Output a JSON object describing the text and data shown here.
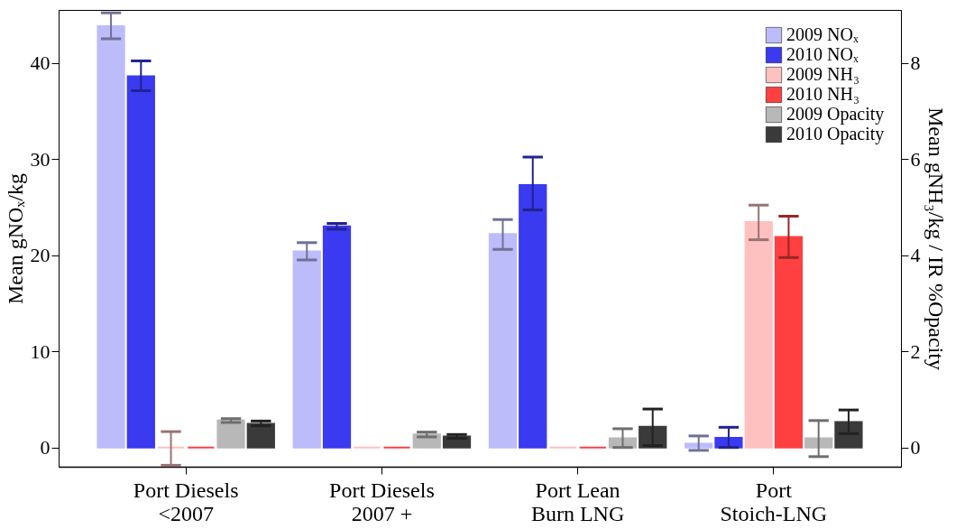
{
  "chart_data": {
    "type": "bar",
    "ylabel": "Mean gNOₓ/kg",
    "y2label": "Mean gNH₃/kg / IR %Opacity",
    "categories": [
      "Port Diesels\n<2007",
      "Port Diesels\n2007 +",
      "Port Lean\nBurn LNG",
      "Port\nStoich-LNG"
    ],
    "series": [
      {
        "name": "2009 NOₓ",
        "color": "#bcbcfb",
        "values": [
          43.8,
          20.4,
          22.2,
          0.4
        ],
        "errors": [
          [
            42.5,
            45.2
          ],
          [
            19.5,
            21.3
          ],
          [
            20.6,
            23.7
          ],
          [
            -0.3,
            1.2
          ]
        ]
      },
      {
        "name": "2010 NOₓ",
        "color": "#3a3af0",
        "values": [
          38.6,
          23.0,
          27.3,
          1.0
        ],
        "errors": [
          [
            37.1,
            40.2
          ],
          [
            22.7,
            23.3
          ],
          [
            24.7,
            30.2
          ],
          [
            0.0,
            2.1
          ]
        ]
      },
      {
        "name": "2009 NH₃",
        "color": "#ffc0c0",
        "axis": "y2",
        "values": [
          0.0,
          0.0,
          0.0,
          4.69
        ],
        "errors": [
          [
            -0.37,
            0.33
          ],
          null,
          null,
          [
            4.32,
            5.04
          ]
        ]
      },
      {
        "name": "2010 NH₃",
        "color": "#ff4040",
        "axis": "y2",
        "values": [
          0.0,
          0.0,
          0.0,
          4.38
        ],
        "errors": [
          null,
          null,
          null,
          [
            3.95,
            4.81
          ]
        ]
      },
      {
        "name": "2009 Opacity",
        "color": "#b8b8b8",
        "axis": "y2",
        "values": [
          0.56,
          0.27,
          0.19,
          0.19
        ],
        "errors": [
          [
            0.52,
            0.6
          ],
          [
            0.22,
            0.32
          ],
          [
            0.0,
            0.39
          ],
          [
            -0.19,
            0.56
          ]
        ]
      },
      {
        "name": "2010 Opacity",
        "color": "#3a3a3a",
        "axis": "y2",
        "values": [
          0.49,
          0.23,
          0.43,
          0.53
        ],
        "errors": [
          [
            0.45,
            0.55
          ],
          [
            0.19,
            0.27
          ],
          [
            0.04,
            0.8
          ],
          [
            0.29,
            0.78
          ]
        ]
      }
    ],
    "ylim": [
      -2,
      45.5
    ],
    "yticks": [
      0,
      10,
      20,
      30,
      40
    ],
    "y2lim": [
      -0.4,
      9.1
    ],
    "y2ticks": [
      0,
      2,
      4,
      6,
      8
    ],
    "grid": false,
    "legend": "top right"
  }
}
